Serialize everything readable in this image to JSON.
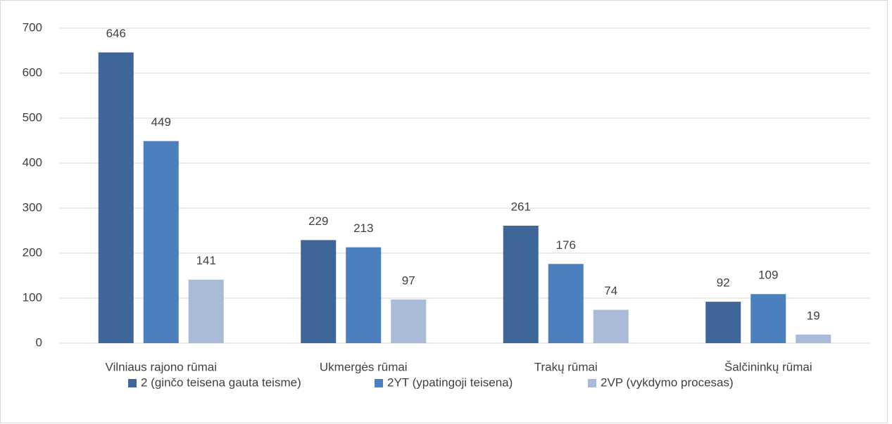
{
  "chart_data": {
    "type": "bar",
    "categories": [
      "Vilniaus rajono rūmai",
      "Ukmergės rūmai",
      "Trakų rūmai",
      "Šalčininkų rūmai"
    ],
    "series": [
      {
        "name": "2 (ginčo teisena gauta teisme)",
        "color": "#3f6699",
        "values": [
          646,
          229,
          261,
          92
        ]
      },
      {
        "name": "2YT (ypatingoji teisena)",
        "color": "#4b7fbd",
        "values": [
          449,
          213,
          176,
          109
        ]
      },
      {
        "name": "2VP (vykdymo procesas)",
        "color": "#a9bbd8",
        "values": [
          141,
          97,
          74,
          19
        ]
      }
    ],
    "ylim": [
      0,
      700
    ],
    "yticks": [
      0,
      100,
      200,
      300,
      400,
      500,
      600,
      700
    ],
    "grid": true,
    "legend": "bottom"
  }
}
